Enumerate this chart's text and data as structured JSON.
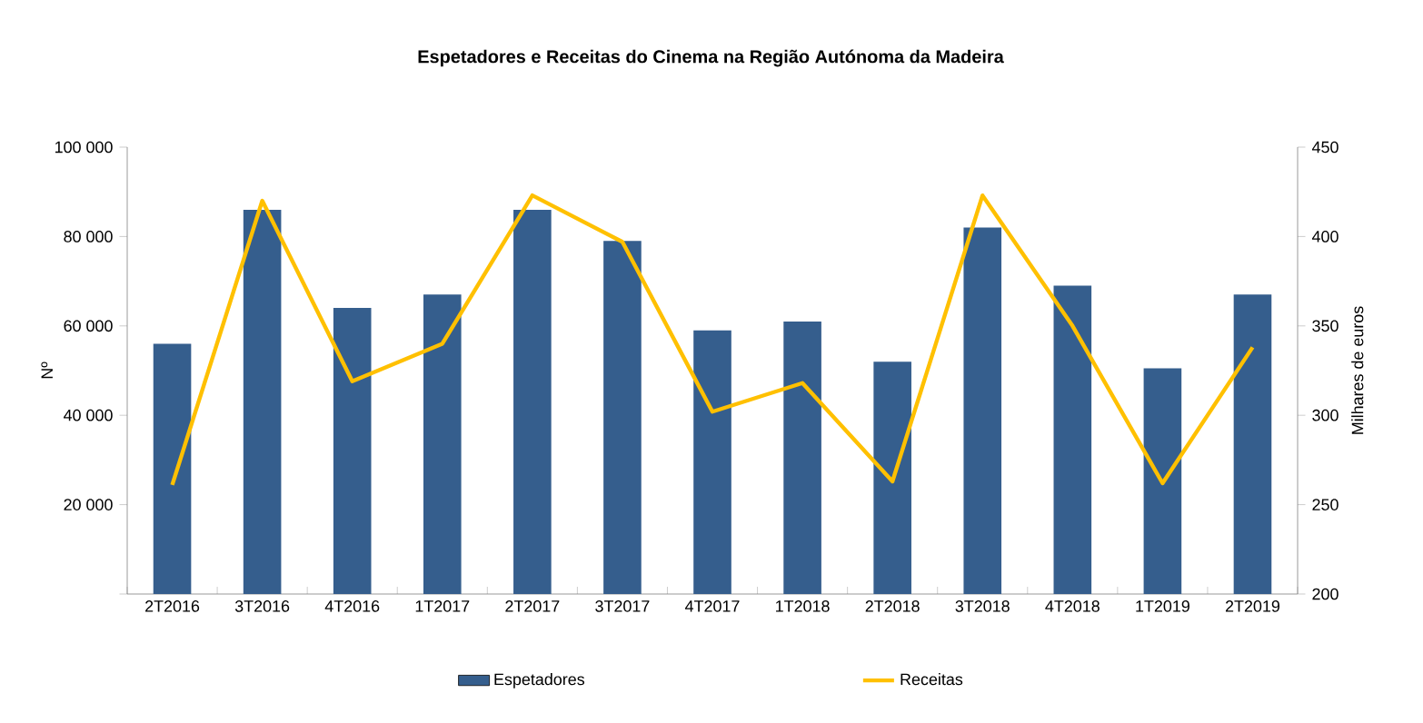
{
  "chart_data": {
    "type": "bar",
    "title": "Espetadores  e Receitas do Cinema na Região Autónoma da Madeira",
    "ylabel": "Nº",
    "y2label": "Milhares de euros",
    "categories": [
      "2T2016",
      "3T2016",
      "4T2016",
      "1T2017",
      "2T2017",
      "3T2017",
      "4T2017",
      "1T2018",
      "2T2018",
      "3T2018",
      "4T2018",
      "1T2019",
      "2T2019"
    ],
    "series": [
      {
        "name": "Espetadores",
        "color": "#355e8d",
        "values": [
          56000,
          86000,
          64000,
          67000,
          86000,
          79000,
          59000,
          61000,
          52000,
          82000,
          69000,
          50500,
          67000
        ]
      },
      {
        "name": "Receitas",
        "type": "line",
        "axis": "y2",
        "color": "#ffc000",
        "values": [
          261,
          420,
          319,
          340,
          423,
          397,
          302,
          318,
          263,
          423,
          350,
          262,
          338
        ]
      }
    ],
    "ylim": [
      0,
      100000
    ],
    "yticks": [
      {
        "value": 0,
        "label": null
      },
      {
        "value": 20000,
        "label": "20 000"
      },
      {
        "value": 40000,
        "label": "40 000"
      },
      {
        "value": 60000,
        "label": "60 000"
      },
      {
        "value": 80000,
        "label": "80 000"
      },
      {
        "value": 100000,
        "label": "100 000"
      }
    ],
    "y2lim": [
      200,
      450
    ],
    "y2ticks": [
      200,
      250,
      300,
      350,
      400,
      450
    ],
    "grid": false,
    "legend": "bottom"
  }
}
